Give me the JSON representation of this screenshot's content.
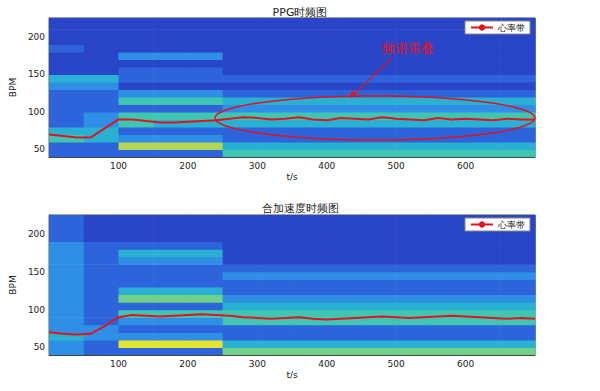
{
  "chart_data": [
    {
      "type": "heatmap",
      "title": "PPG时频图",
      "xlabel": "t/s",
      "ylabel": "BPM",
      "xlim": [
        0,
        700
      ],
      "xticks": [
        100,
        200,
        300,
        400,
        500,
        600
      ],
      "ylim": [
        40,
        225
      ],
      "yticks": [
        50,
        100,
        150,
        200
      ],
      "grid": false,
      "legend": "upper right",
      "annotation": "频谱重叠",
      "spectrogram": {
        "clim": [
          0,
          10
        ],
        "t": [
          25,
          75,
          125,
          175,
          225,
          275,
          325,
          375,
          425,
          475,
          525,
          575,
          625,
          675
        ],
        "bpm": [
          45,
          55,
          65,
          75,
          85,
          95,
          105,
          115,
          125,
          135,
          145,
          155,
          165,
          175,
          185,
          195,
          205,
          215,
          225
        ],
        "power": [
          [
            3,
            3,
            3,
            3,
            3,
            6,
            6,
            6,
            6,
            6,
            6,
            6,
            6,
            6
          ],
          [
            3,
            3,
            8,
            8,
            8,
            5,
            5,
            5,
            5,
            5,
            5,
            5,
            5,
            5
          ],
          [
            6,
            5,
            4,
            4,
            4,
            3,
            3,
            3,
            3,
            3,
            3,
            3,
            3,
            3
          ],
          [
            5,
            5,
            3,
            3,
            3,
            3,
            3,
            3,
            3,
            3,
            3,
            3,
            3,
            3
          ],
          [
            3,
            4,
            6,
            5,
            5,
            5,
            5,
            5,
            5,
            5,
            5,
            5,
            5,
            5
          ],
          [
            3,
            4,
            6,
            6,
            6,
            6,
            6,
            6,
            6,
            6,
            6,
            6,
            6,
            6
          ],
          [
            3,
            3,
            3,
            3,
            3,
            4,
            4,
            4,
            4,
            4,
            4,
            4,
            4,
            4
          ],
          [
            3,
            3,
            6,
            6,
            6,
            5,
            5,
            5,
            5,
            5,
            5,
            5,
            5,
            5
          ],
          [
            3,
            3,
            4,
            4,
            4,
            3,
            3,
            3,
            3,
            3,
            3,
            3,
            3,
            3
          ],
          [
            4,
            4,
            2,
            2,
            2,
            2,
            2,
            2,
            2,
            2,
            2,
            2,
            2,
            2
          ],
          [
            5,
            5,
            3,
            3,
            3,
            3,
            3,
            3,
            3,
            3,
            3,
            3,
            3,
            3
          ],
          [
            2,
            2,
            3,
            3,
            3,
            2,
            2,
            2,
            2,
            2,
            2,
            2,
            2,
            2
          ],
          [
            2,
            2,
            2,
            2,
            2,
            2,
            2,
            2,
            2,
            2,
            2,
            2,
            2,
            2
          ],
          [
            2,
            2,
            4,
            4,
            4,
            2,
            2,
            2,
            2,
            2,
            2,
            2,
            2,
            2
          ],
          [
            3,
            2,
            2,
            2,
            2,
            2,
            2,
            2,
            2,
            2,
            2,
            2,
            2,
            2
          ],
          [
            2,
            2,
            2,
            2,
            2,
            2,
            2,
            2,
            2,
            2,
            2,
            2,
            2,
            2
          ],
          [
            2,
            2,
            2,
            2,
            2,
            2,
            2,
            2,
            2,
            2,
            2,
            2,
            2,
            2
          ],
          [
            2,
            2,
            2,
            2,
            2,
            2,
            2,
            2,
            2,
            2,
            2,
            2,
            2,
            2
          ],
          [
            2,
            2,
            2,
            2,
            2,
            2,
            2,
            2,
            2,
            2,
            2,
            2,
            2,
            2
          ]
        ]
      },
      "x": [
        0,
        20,
        40,
        60,
        80,
        100,
        120,
        140,
        160,
        180,
        200,
        220,
        240,
        260,
        280,
        300,
        320,
        340,
        360,
        380,
        400,
        420,
        440,
        460,
        480,
        500,
        520,
        540,
        560,
        580,
        600,
        620,
        640,
        660,
        680,
        700
      ],
      "series": [
        {
          "name": "心率带",
          "type": "line",
          "color": "#e0141c",
          "values": [
            70,
            68,
            66,
            66,
            78,
            90,
            90,
            88,
            86,
            86,
            87,
            88,
            89,
            91,
            93,
            92,
            90,
            91,
            93,
            90,
            89,
            92,
            91,
            90,
            93,
            91,
            90,
            89,
            92,
            90,
            91,
            90,
            89,
            91,
            90,
            90
          ]
        }
      ]
    },
    {
      "type": "heatmap",
      "title": "合加速度时频图",
      "xlabel": "t/s",
      "ylabel": "BPM",
      "xlim": [
        0,
        700
      ],
      "xticks": [
        100,
        200,
        300,
        400,
        500,
        600
      ],
      "ylim": [
        40,
        225
      ],
      "yticks": [
        50,
        100,
        150,
        200
      ],
      "grid": false,
      "legend": "upper right",
      "spectrogram": {
        "clim": [
          0,
          10
        ],
        "t": [
          25,
          75,
          125,
          175,
          225,
          275,
          325,
          375,
          425,
          475,
          525,
          575,
          625,
          675
        ],
        "bpm": [
          45,
          55,
          65,
          75,
          85,
          95,
          105,
          115,
          125,
          135,
          145,
          155,
          165,
          175,
          185,
          195,
          205,
          215,
          225
        ],
        "power": [
          [
            4,
            3,
            3,
            3,
            3,
            7,
            7,
            7,
            7,
            7,
            7,
            7,
            7,
            7
          ],
          [
            4,
            3,
            9,
            9,
            9,
            5,
            5,
            5,
            5,
            5,
            5,
            5,
            5,
            5
          ],
          [
            5,
            4,
            4,
            4,
            4,
            3,
            3,
            3,
            3,
            3,
            3,
            3,
            3,
            3
          ],
          [
            4,
            4,
            3,
            3,
            3,
            3,
            3,
            3,
            3,
            3,
            3,
            3,
            3,
            3
          ],
          [
            4,
            3,
            4,
            4,
            4,
            6,
            6,
            6,
            6,
            6,
            6,
            6,
            6,
            6
          ],
          [
            4,
            3,
            6,
            6,
            6,
            6,
            6,
            6,
            6,
            6,
            6,
            6,
            6,
            6
          ],
          [
            4,
            3,
            3,
            3,
            3,
            5,
            5,
            5,
            5,
            5,
            5,
            5,
            5,
            5
          ],
          [
            4,
            3,
            7,
            7,
            7,
            4,
            4,
            4,
            4,
            4,
            4,
            4,
            4,
            4
          ],
          [
            4,
            3,
            5,
            5,
            5,
            3,
            3,
            3,
            3,
            3,
            3,
            3,
            3,
            3
          ],
          [
            4,
            3,
            3,
            3,
            3,
            3,
            3,
            3,
            3,
            3,
            3,
            3,
            3,
            3
          ],
          [
            4,
            3,
            3,
            3,
            3,
            4,
            4,
            4,
            4,
            4,
            4,
            4,
            4,
            4
          ],
          [
            4,
            3,
            3,
            3,
            3,
            3,
            3,
            3,
            3,
            3,
            3,
            3,
            3,
            3
          ],
          [
            4,
            3,
            4,
            4,
            4,
            2,
            2,
            2,
            2,
            2,
            2,
            2,
            2,
            2
          ],
          [
            4,
            3,
            5,
            5,
            5,
            2,
            2,
            2,
            2,
            2,
            2,
            2,
            2,
            2
          ],
          [
            4,
            3,
            3,
            3,
            3,
            2,
            2,
            2,
            2,
            2,
            2,
            2,
            2,
            2
          ],
          [
            3,
            2,
            2,
            2,
            2,
            2,
            2,
            2,
            2,
            2,
            2,
            2,
            2,
            2
          ],
          [
            3,
            2,
            2,
            2,
            2,
            2,
            2,
            2,
            2,
            2,
            2,
            2,
            2,
            2
          ],
          [
            3,
            2,
            2,
            2,
            2,
            2,
            2,
            2,
            2,
            2,
            2,
            2,
            2,
            2
          ],
          [
            3,
            2,
            2,
            2,
            2,
            2,
            2,
            2,
            2,
            2,
            2,
            2,
            2,
            2
          ]
        ]
      },
      "x": [
        0,
        20,
        40,
        60,
        80,
        100,
        120,
        140,
        160,
        180,
        200,
        220,
        240,
        260,
        280,
        300,
        320,
        340,
        360,
        380,
        400,
        420,
        440,
        460,
        480,
        500,
        520,
        540,
        560,
        580,
        600,
        620,
        640,
        660,
        680,
        700
      ],
      "series": [
        {
          "name": "心率带",
          "type": "line",
          "color": "#e0141c",
          "values": [
            70,
            68,
            67,
            68,
            78,
            90,
            93,
            92,
            91,
            92,
            93,
            94,
            93,
            92,
            90,
            89,
            88,
            89,
            90,
            88,
            87,
            88,
            89,
            90,
            91,
            90,
            89,
            90,
            91,
            92,
            91,
            90,
            89,
            88,
            89,
            88
          ]
        }
      ]
    }
  ]
}
